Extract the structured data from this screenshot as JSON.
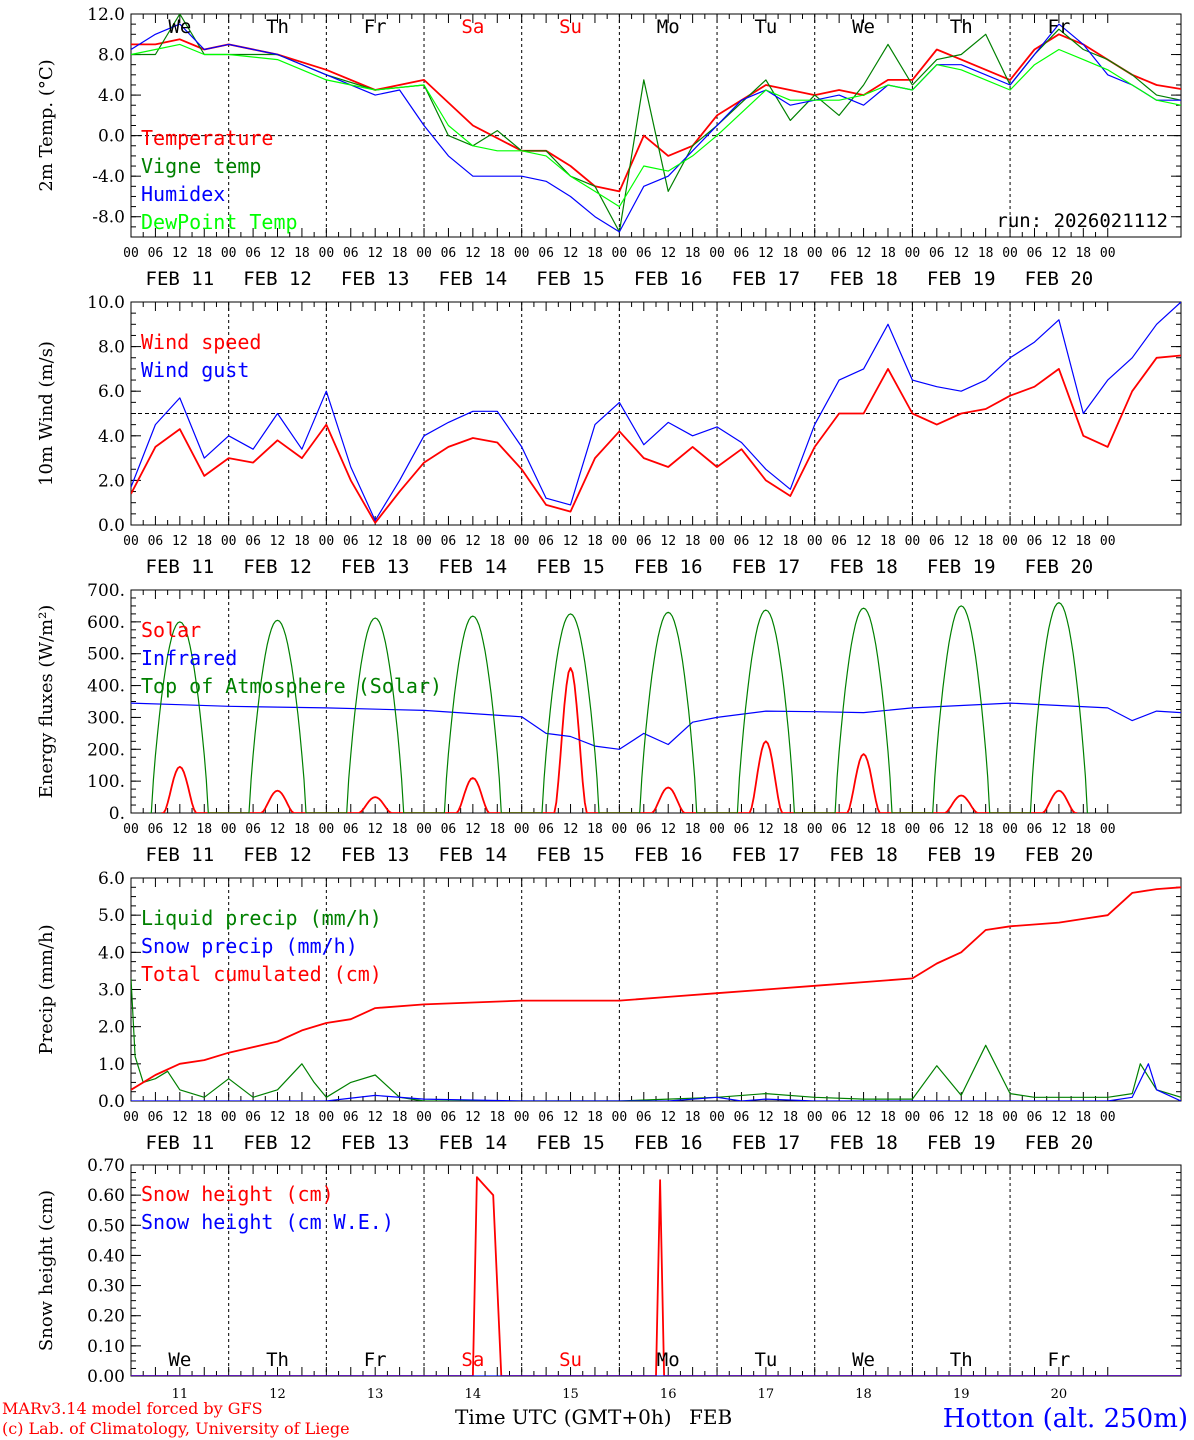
{
  "colors": {
    "red": "#ff0000",
    "green": "#008000",
    "blue": "#0000ff",
    "lightgreen": "#00ff00",
    "axis": "#000000",
    "weekend": "#ff0000"
  },
  "run": "run: 2026021112",
  "footer": {
    "model": "MARv3.14 model forced by GFS",
    "lab": "(c) Lab. of Climatology, University of Liege",
    "xlabel": "Time UTC (GMT+0h)",
    "month": "FEB",
    "station": "Hotton (alt. 250m)"
  },
  "days": [
    "We",
    "Th",
    "Fr",
    "Sa",
    "Su",
    "Mo",
    "Tu",
    "We",
    "Th",
    "Fr"
  ],
  "weekend_flags": [
    false,
    false,
    false,
    true,
    true,
    false,
    false,
    false,
    false,
    false
  ],
  "dates": [
    "FEB 11",
    "FEB 12",
    "FEB 13",
    "FEB 14",
    "FEB 15",
    "FEB 16",
    "FEB 17",
    "FEB 18",
    "FEB 19",
    "FEB 20"
  ],
  "day_numbers": [
    "11",
    "12",
    "13",
    "14",
    "15",
    "16",
    "17",
    "18",
    "19",
    "20"
  ],
  "hour_ticks": [
    "00",
    "06",
    "12",
    "18"
  ],
  "chart_data": [
    {
      "type": "line",
      "id": "temp",
      "ylabel": "2m Temp. (°C)",
      "ylim": [
        -10,
        12
      ],
      "yticks": [
        12,
        8,
        4,
        0,
        -4,
        -8
      ],
      "ytick_labels": [
        "12.0",
        "8.0",
        "4.0",
        "0.0",
        "-4.0",
        "-8.0"
      ],
      "ref_line": 0,
      "x_unit": "hours since FEB 11 00 UTC",
      "series": [
        {
          "name": "Temperature",
          "color": "red",
          "x": [
            0,
            6,
            12,
            18,
            24,
            36,
            48,
            60,
            72,
            84,
            96,
            102,
            108,
            114,
            120,
            126,
            132,
            138,
            144,
            156,
            168,
            174,
            180,
            186,
            192,
            198,
            204,
            216,
            222,
            228,
            234,
            240,
            246,
            252,
            258
          ],
          "y": [
            9,
            9,
            9.5,
            8.5,
            9,
            8,
            6.5,
            4.5,
            5.5,
            1,
            -1.5,
            -1.5,
            -3,
            -5,
            -5.5,
            0,
            -2,
            -1,
            2,
            5,
            4,
            4.5,
            4,
            5.5,
            5.5,
            8.5,
            7.5,
            5.5,
            8.5,
            10,
            9,
            7.5,
            6,
            5,
            4.6
          ]
        },
        {
          "name": "Vigne temp",
          "color": "green",
          "x": [
            0,
            6,
            12,
            18,
            24,
            36,
            48,
            60,
            72,
            78,
            84,
            90,
            96,
            102,
            108,
            114,
            120,
            126,
            132,
            138,
            144,
            156,
            162,
            168,
            174,
            180,
            186,
            192,
            198,
            204,
            210,
            216,
            222,
            228,
            234,
            240,
            246,
            252,
            258
          ],
          "y": [
            8,
            8,
            12,
            8,
            8,
            8,
            6,
            4.5,
            5,
            0,
            -1,
            0.5,
            -1.5,
            -1.5,
            -4,
            -5,
            -9.5,
            5.5,
            -5.5,
            -1,
            1,
            5.5,
            1.5,
            4,
            2,
            5,
            9,
            5,
            7.5,
            8,
            10,
            5,
            8,
            10.5,
            8.5,
            7.5,
            6,
            4,
            3.5
          ]
        },
        {
          "name": "Humidex",
          "color": "blue",
          "x": [
            0,
            6,
            12,
            18,
            24,
            36,
            48,
            60,
            66,
            72,
            78,
            84,
            90,
            96,
            102,
            108,
            114,
            120,
            126,
            132,
            138,
            144,
            150,
            156,
            162,
            168,
            174,
            180,
            186,
            192,
            198,
            204,
            210,
            216,
            222,
            228,
            234,
            240,
            246,
            252,
            258
          ],
          "y": [
            8.5,
            10,
            11,
            8.5,
            9,
            8,
            6,
            4,
            4.5,
            1,
            -2,
            -4,
            -4,
            -4,
            -4.5,
            -6,
            -8,
            -9.5,
            -5,
            -4,
            -1.5,
            1,
            3.5,
            4.5,
            3,
            3.5,
            4,
            3,
            5,
            4.5,
            7,
            7,
            6,
            5,
            8,
            11,
            9,
            6,
            5,
            3.5,
            3.5
          ]
        },
        {
          "name": "DewPoint Temp",
          "color": "lightgreen",
          "x": [
            0,
            6,
            12,
            18,
            24,
            36,
            48,
            60,
            72,
            78,
            84,
            90,
            96,
            102,
            108,
            114,
            120,
            126,
            132,
            138,
            144,
            156,
            162,
            168,
            174,
            180,
            186,
            192,
            198,
            204,
            210,
            216,
            222,
            228,
            234,
            240,
            246,
            252,
            258
          ],
          "y": [
            8,
            8.5,
            9,
            8,
            8,
            7.5,
            5.5,
            4.5,
            5,
            1,
            -1,
            -1.5,
            -1.5,
            -2,
            -4,
            -5.5,
            -7,
            -3,
            -3.5,
            -2,
            0,
            4.5,
            3.5,
            3.5,
            3.5,
            4,
            5,
            4.5,
            7,
            6.5,
            5.5,
            4.5,
            7,
            8.5,
            7.5,
            6.5,
            5,
            3.5,
            3
          ]
        }
      ]
    },
    {
      "type": "line",
      "id": "wind",
      "ylabel": "10m Wind (m/s)",
      "ylim": [
        0,
        10
      ],
      "yticks": [
        10,
        8,
        6,
        4,
        2,
        0
      ],
      "ytick_labels": [
        "10.0",
        "8.0",
        "6.0",
        "4.0",
        "2.0",
        "0.0"
      ],
      "ref_line": 5,
      "series": [
        {
          "name": "Wind speed",
          "color": "red",
          "x": [
            0,
            6,
            12,
            18,
            24,
            30,
            36,
            42,
            48,
            54,
            60,
            66,
            72,
            78,
            84,
            90,
            96,
            102,
            108,
            114,
            120,
            126,
            132,
            138,
            144,
            150,
            156,
            162,
            168,
            174,
            180,
            186,
            192,
            198,
            204,
            210,
            216,
            222,
            228,
            234,
            240,
            246,
            252,
            258
          ],
          "y": [
            1.4,
            3.5,
            4.3,
            2.2,
            3,
            2.8,
            3.8,
            3,
            4.5,
            2,
            0.1,
            1.5,
            2.8,
            3.5,
            3.9,
            3.7,
            2.5,
            0.9,
            0.6,
            3,
            4.2,
            3,
            2.6,
            3.5,
            2.6,
            3.4,
            2,
            1.3,
            3.5,
            5,
            5,
            7,
            5,
            4.5,
            5,
            5.2,
            5.8,
            6.2,
            7,
            4,
            3.5,
            6,
            7.5,
            7.6
          ]
        },
        {
          "name": "Wind gust",
          "color": "blue",
          "x": [
            0,
            6,
            12,
            18,
            24,
            30,
            36,
            42,
            48,
            54,
            60,
            66,
            72,
            78,
            84,
            90,
            96,
            102,
            108,
            114,
            120,
            126,
            132,
            138,
            144,
            150,
            156,
            162,
            168,
            174,
            180,
            186,
            192,
            198,
            204,
            210,
            216,
            222,
            228,
            234,
            240,
            246,
            252,
            258
          ],
          "y": [
            1.7,
            4.5,
            5.7,
            3,
            4,
            3.4,
            5,
            3.4,
            6,
            2.6,
            0.2,
            2,
            4,
            4.6,
            5.1,
            5.1,
            3.5,
            1.2,
            0.9,
            4.5,
            5.5,
            3.6,
            4.6,
            4,
            4.4,
            3.7,
            2.5,
            1.6,
            4.5,
            6.5,
            7,
            9,
            6.5,
            6.2,
            6,
            6.5,
            7.5,
            8.2,
            9.2,
            5,
            6.5,
            7.5,
            9,
            10
          ]
        }
      ]
    },
    {
      "type": "line",
      "id": "energy",
      "ylabel": "Energy fluxes (W/m²)",
      "ylim": [
        0,
        700
      ],
      "yticks": [
        700,
        600,
        500,
        400,
        300,
        200,
        100,
        0
      ],
      "ytick_labels": [
        "700.",
        "600.",
        "500.",
        "400.",
        "300.",
        "200.",
        "100.",
        "0."
      ],
      "series": [
        {
          "name": "Solar",
          "color": "red",
          "peak_hour": 12,
          "daily_peaks": [
            145,
            70,
            50,
            110,
            455,
            80,
            225,
            185,
            55,
            70
          ]
        },
        {
          "name": "Infrared",
          "color": "blue",
          "x": [
            0,
            12,
            24,
            48,
            72,
            96,
            102,
            108,
            114,
            120,
            126,
            132,
            138,
            144,
            156,
            168,
            180,
            192,
            216,
            240,
            246,
            252,
            258
          ],
          "y": [
            345,
            340,
            335,
            330,
            322,
            302,
            250,
            240,
            210,
            200,
            250,
            215,
            285,
            300,
            320,
            318,
            315,
            330,
            345,
            330,
            290,
            320,
            315
          ]
        },
        {
          "name": "Top of Atmosphere (Solar)",
          "color": "green",
          "peak_hour": 12,
          "daily_peaks": [
            600,
            605,
            612,
            618,
            625,
            630,
            637,
            643,
            650,
            660
          ]
        }
      ]
    },
    {
      "type": "line",
      "id": "precip",
      "ylabel": "Precip (mm/h)",
      "ylim": [
        0,
        6
      ],
      "yticks": [
        6,
        5,
        4,
        3,
        2,
        1,
        0
      ],
      "ytick_labels": [
        "6.0",
        "5.0",
        "4.0",
        "3.0",
        "2.0",
        "1.0",
        "0.0"
      ],
      "series": [
        {
          "name": "Liquid precip (mm/h)",
          "color": "green",
          "x": [
            0,
            1,
            3,
            6,
            9,
            12,
            18,
            24,
            30,
            36,
            42,
            45,
            48,
            54,
            60,
            66,
            72,
            84,
            96,
            120,
            132,
            144,
            156,
            168,
            180,
            192,
            198,
            204,
            210,
            216,
            222,
            228,
            234,
            240,
            246,
            248,
            252,
            258
          ],
          "y": [
            3.3,
            1.2,
            0.5,
            0.6,
            0.8,
            0.3,
            0.1,
            0.6,
            0.1,
            0.3,
            1.0,
            0.5,
            0.1,
            0.5,
            0.7,
            0.1,
            0,
            0,
            0,
            0,
            0.05,
            0.1,
            0.2,
            0.1,
            0.05,
            0.05,
            0.95,
            0.15,
            1.5,
            0.2,
            0.1,
            0.1,
            0.1,
            0.1,
            0.2,
            1.0,
            0.3,
            0.1
          ]
        },
        {
          "name": "Snow precip (mm/h)",
          "color": "blue",
          "x": [
            0,
            36,
            48,
            60,
            72,
            96,
            132,
            144,
            150,
            156,
            168,
            192,
            240,
            246,
            250,
            252,
            258
          ],
          "y": [
            0,
            0,
            0,
            0.15,
            0.05,
            0,
            0,
            0.1,
            0,
            0.05,
            0,
            0,
            0,
            0.1,
            1.0,
            0.3,
            0
          ]
        },
        {
          "name": "Total cumulated (cm)",
          "color": "red",
          "x": [
            0,
            6,
            12,
            18,
            24,
            36,
            42,
            48,
            54,
            60,
            72,
            96,
            120,
            132,
            144,
            156,
            168,
            180,
            192,
            198,
            204,
            210,
            216,
            228,
            234,
            240,
            246,
            252,
            258
          ],
          "y": [
            0.3,
            0.7,
            1.0,
            1.1,
            1.3,
            1.6,
            1.9,
            2.1,
            2.2,
            2.5,
            2.6,
            2.7,
            2.7,
            2.8,
            2.9,
            3.0,
            3.1,
            3.2,
            3.3,
            3.7,
            4.0,
            4.6,
            4.7,
            4.8,
            4.9,
            5.0,
            5.6,
            5.7,
            5.75
          ]
        }
      ]
    },
    {
      "type": "line",
      "id": "snow",
      "ylabel": "Snow height (cm)",
      "ylim": [
        0,
        0.7
      ],
      "yticks": [
        0.7,
        0.6,
        0.5,
        0.4,
        0.3,
        0.2,
        0.1,
        0
      ],
      "ytick_labels": [
        "0.70",
        "0.60",
        "0.50",
        "0.40",
        "0.30",
        "0.20",
        "0.10",
        "0.00"
      ],
      "series": [
        {
          "name": "Snow height (cm)",
          "color": "red",
          "x": [
            0,
            84,
            85,
            89,
            91,
            128,
            129,
            130,
            131,
            258
          ],
          "y": [
            0,
            0,
            0.66,
            0.6,
            0,
            0,
            0,
            0.65,
            0,
            0
          ]
        },
        {
          "name": "Snow height (cm W.E.)",
          "color": "blue",
          "x": [
            0,
            258
          ],
          "y": [
            0,
            0
          ]
        }
      ]
    }
  ]
}
